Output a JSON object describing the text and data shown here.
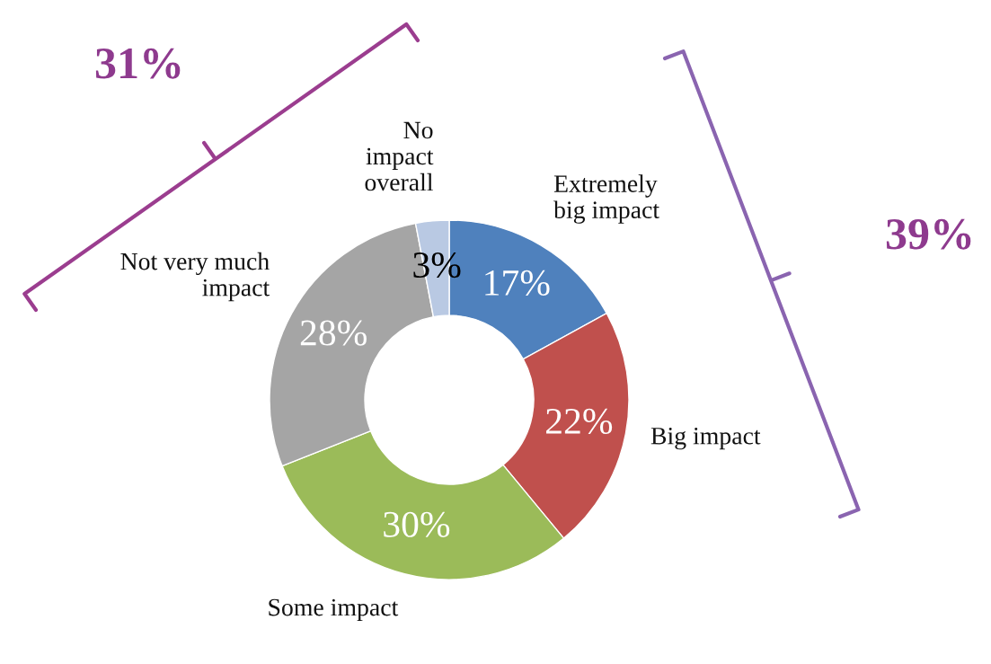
{
  "chart_data": {
    "type": "donut",
    "categories": [
      "Extremely\nbig impact",
      "Big impact",
      "Some impact",
      "Not very much\nimpact",
      "No\nimpact\noverall"
    ],
    "values": [
      17,
      22,
      30,
      28,
      3
    ],
    "colors": [
      "#4f81bd",
      "#c0504d",
      "#9bbb59",
      "#a5a5a5",
      "#b9c9e3"
    ],
    "value_labels": [
      "17%",
      "22%",
      "30%",
      "28%",
      "3%"
    ],
    "annotations": [
      "31%",
      "39%"
    ]
  }
}
